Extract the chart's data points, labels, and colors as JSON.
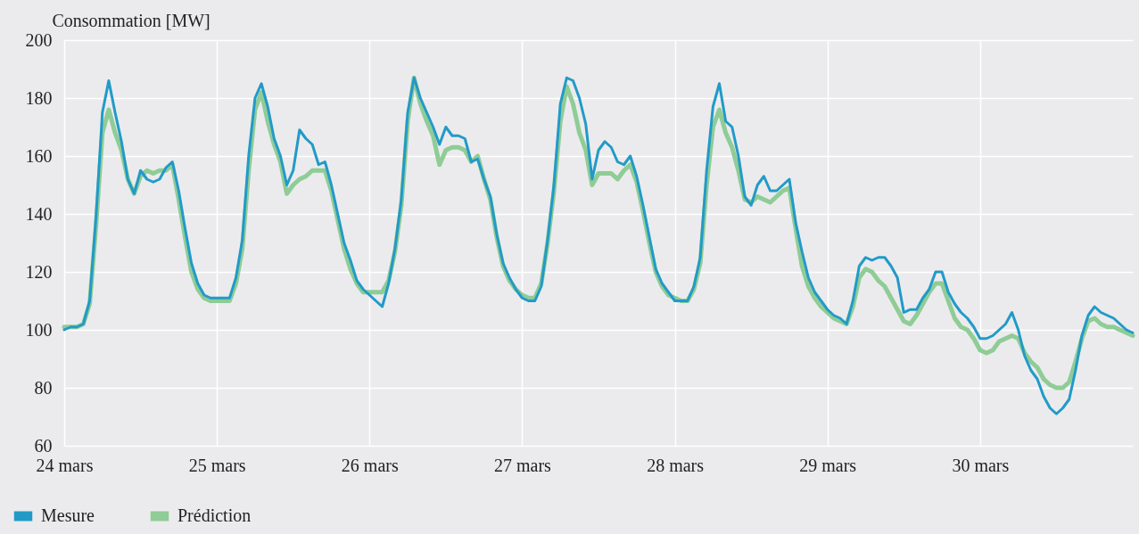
{
  "chart_data": {
    "type": "line",
    "ylabel": "Consommation [MW]",
    "xlim": [
      "--03-24",
      "--03-31"
    ],
    "xticks": [
      {
        "value": "--03-24",
        "label": "24 mars"
      },
      {
        "value": "--03-25",
        "label": "25 mars"
      },
      {
        "value": "--03-26",
        "label": "26 mars"
      },
      {
        "value": "--03-27",
        "label": "27 mars"
      },
      {
        "value": "--03-28",
        "label": "28 mars"
      },
      {
        "value": "--03-29",
        "label": "29 mars"
      },
      {
        "value": "--03-30",
        "label": "30 mars"
      }
    ],
    "ylim": [
      60,
      200
    ],
    "yticks": [
      60,
      80,
      100,
      120,
      140,
      160,
      180,
      200
    ],
    "grid": true,
    "legend": "bottom left",
    "line_style": "solid",
    "x": [
      "--03-24T00:00",
      "--03-24T01:00",
      "--03-24T02:00",
      "--03-24T03:00",
      "--03-24T04:00",
      "--03-24T05:00",
      "--03-24T06:00",
      "--03-24T07:00",
      "--03-24T08:00",
      "--03-24T09:00",
      "--03-24T10:00",
      "--03-24T11:00",
      "--03-24T12:00",
      "--03-24T13:00",
      "--03-24T14:00",
      "--03-24T15:00",
      "--03-24T16:00",
      "--03-24T17:00",
      "--03-24T18:00",
      "--03-24T19:00",
      "--03-24T20:00",
      "--03-24T21:00",
      "--03-24T22:00",
      "--03-24T23:00",
      "--03-25T00:00",
      "--03-25T01:00",
      "--03-25T02:00",
      "--03-25T03:00",
      "--03-25T04:00",
      "--03-25T05:00",
      "--03-25T06:00",
      "--03-25T07:00",
      "--03-25T08:00",
      "--03-25T09:00",
      "--03-25T10:00",
      "--03-25T11:00",
      "--03-25T12:00",
      "--03-25T13:00",
      "--03-25T14:00",
      "--03-25T15:00",
      "--03-25T16:00",
      "--03-25T17:00",
      "--03-25T18:00",
      "--03-25T19:00",
      "--03-25T20:00",
      "--03-25T21:00",
      "--03-25T22:00",
      "--03-25T23:00",
      "--03-26T00:00",
      "--03-26T01:00",
      "--03-26T02:00",
      "--03-26T03:00",
      "--03-26T04:00",
      "--03-26T05:00",
      "--03-26T06:00",
      "--03-26T07:00",
      "--03-26T08:00",
      "--03-26T09:00",
      "--03-26T10:00",
      "--03-26T11:00",
      "--03-26T12:00",
      "--03-26T13:00",
      "--03-26T14:00",
      "--03-26T15:00",
      "--03-26T16:00",
      "--03-26T17:00",
      "--03-26T18:00",
      "--03-26T19:00",
      "--03-26T20:00",
      "--03-26T21:00",
      "--03-26T22:00",
      "--03-26T23:00",
      "--03-27T00:00",
      "--03-27T01:00",
      "--03-27T02:00",
      "--03-27T03:00",
      "--03-27T04:00",
      "--03-27T05:00",
      "--03-27T06:00",
      "--03-27T07:00",
      "--03-27T08:00",
      "--03-27T09:00",
      "--03-27T10:00",
      "--03-27T11:00",
      "--03-27T12:00",
      "--03-27T13:00",
      "--03-27T14:00",
      "--03-27T15:00",
      "--03-27T16:00",
      "--03-27T17:00",
      "--03-27T18:00",
      "--03-27T19:00",
      "--03-27T20:00",
      "--03-27T21:00",
      "--03-27T22:00",
      "--03-27T23:00",
      "--03-28T00:00",
      "--03-28T01:00",
      "--03-28T02:00",
      "--03-28T03:00",
      "--03-28T04:00",
      "--03-28T05:00",
      "--03-28T06:00",
      "--03-28T07:00",
      "--03-28T08:00",
      "--03-28T09:00",
      "--03-28T10:00",
      "--03-28T11:00",
      "--03-28T12:00",
      "--03-28T13:00",
      "--03-28T14:00",
      "--03-28T15:00",
      "--03-28T16:00",
      "--03-28T17:00",
      "--03-28T18:00",
      "--03-28T19:00",
      "--03-28T20:00",
      "--03-28T21:00",
      "--03-28T22:00",
      "--03-28T23:00",
      "--03-29T00:00",
      "--03-29T01:00",
      "--03-29T02:00",
      "--03-29T03:00",
      "--03-29T04:00",
      "--03-29T05:00",
      "--03-29T06:00",
      "--03-29T07:00",
      "--03-29T08:00",
      "--03-29T09:00",
      "--03-29T10:00",
      "--03-29T11:00",
      "--03-29T12:00",
      "--03-29T13:00",
      "--03-29T14:00",
      "--03-29T15:00",
      "--03-29T16:00",
      "--03-29T17:00",
      "--03-29T18:00",
      "--03-29T19:00",
      "--03-29T20:00",
      "--03-29T21:00",
      "--03-29T22:00",
      "--03-29T23:00",
      "--03-30T00:00",
      "--03-30T01:00",
      "--03-30T02:00",
      "--03-30T03:00",
      "--03-30T04:00",
      "--03-30T05:00",
      "--03-30T06:00",
      "--03-30T07:00",
      "--03-30T08:00",
      "--03-30T09:00",
      "--03-30T10:00",
      "--03-30T11:00",
      "--03-30T12:00",
      "--03-30T13:00",
      "--03-30T14:00",
      "--03-30T15:00",
      "--03-30T16:00",
      "--03-30T17:00",
      "--03-30T18:00",
      "--03-30T19:00",
      "--03-30T20:00",
      "--03-30T21:00",
      "--03-30T22:00",
      "--03-30T23:00",
      "--03-31T00:00"
    ],
    "series": [
      {
        "name": "Mesure",
        "color": "#229ac8",
        "values": [
          100,
          101,
          101,
          102,
          110,
          139,
          175,
          186,
          175,
          165,
          152,
          147,
          155,
          152,
          151,
          152,
          156,
          158,
          148,
          135,
          123,
          116,
          112,
          111,
          111,
          111,
          111,
          118,
          131,
          160,
          180,
          185,
          177,
          166,
          160,
          150,
          155,
          169,
          166,
          164,
          157,
          158,
          150,
          140,
          130,
          124,
          117,
          114,
          112,
          110,
          108,
          116,
          128,
          145,
          175,
          187,
          180,
          175,
          170,
          164,
          170,
          167,
          167,
          166,
          158,
          159,
          152,
          146,
          133,
          123,
          118,
          114,
          111,
          110,
          110,
          115,
          131,
          150,
          178,
          187,
          186,
          180,
          171,
          152,
          162,
          165,
          163,
          158,
          157,
          160,
          153,
          143,
          132,
          121,
          116,
          113,
          110,
          110,
          110,
          115,
          125,
          155,
          177,
          185,
          172,
          170,
          160,
          146,
          143,
          150,
          153,
          148,
          148,
          150,
          152,
          137,
          127,
          118,
          113,
          110,
          107,
          105,
          104,
          102,
          110,
          122,
          125,
          124,
          125,
          125,
          122,
          118,
          106,
          107,
          107,
          111,
          114,
          120,
          120,
          113,
          109,
          106,
          104,
          101,
          97,
          97,
          98,
          100,
          102,
          106,
          100,
          91,
          86,
          83,
          77,
          73,
          71,
          73,
          76,
          86,
          98,
          105,
          108,
          106,
          105,
          104,
          102,
          100,
          99
        ]
      },
      {
        "name": "Prédiction",
        "color": "#8fcc96",
        "values": [
          101,
          101,
          101,
          102,
          109,
          136,
          168,
          176,
          168,
          162,
          152,
          147,
          153,
          155,
          154,
          155,
          155,
          157,
          145,
          132,
          120,
          114,
          111,
          110,
          110,
          110,
          110,
          116,
          128,
          155,
          176,
          182,
          172,
          164,
          158,
          147,
          150,
          152,
          153,
          155,
          155,
          155,
          148,
          138,
          128,
          121,
          116,
          113,
          113,
          113,
          113,
          117,
          127,
          143,
          172,
          187,
          178,
          172,
          167,
          157,
          162,
          163,
          163,
          162,
          158,
          160,
          152,
          145,
          132,
          122,
          117,
          114,
          112,
          111,
          111,
          116,
          130,
          148,
          172,
          184,
          178,
          168,
          162,
          150,
          154,
          154,
          154,
          152,
          155,
          157,
          151,
          141,
          130,
          120,
          115,
          112,
          111,
          110,
          110,
          114,
          123,
          150,
          170,
          176,
          168,
          163,
          155,
          145,
          144,
          146,
          145,
          144,
          146,
          148,
          149,
          135,
          122,
          115,
          111,
          108,
          106,
          104,
          103,
          102,
          108,
          118,
          121,
          120,
          117,
          115,
          111,
          107,
          103,
          102,
          105,
          109,
          113,
          116,
          116,
          110,
          104,
          101,
          100,
          97,
          93,
          92,
          93,
          96,
          97,
          98,
          97,
          92,
          89,
          87,
          83,
          81,
          80,
          80,
          82,
          89,
          97,
          103,
          104,
          102,
          101,
          101,
          100,
          99,
          98
        ]
      }
    ]
  }
}
